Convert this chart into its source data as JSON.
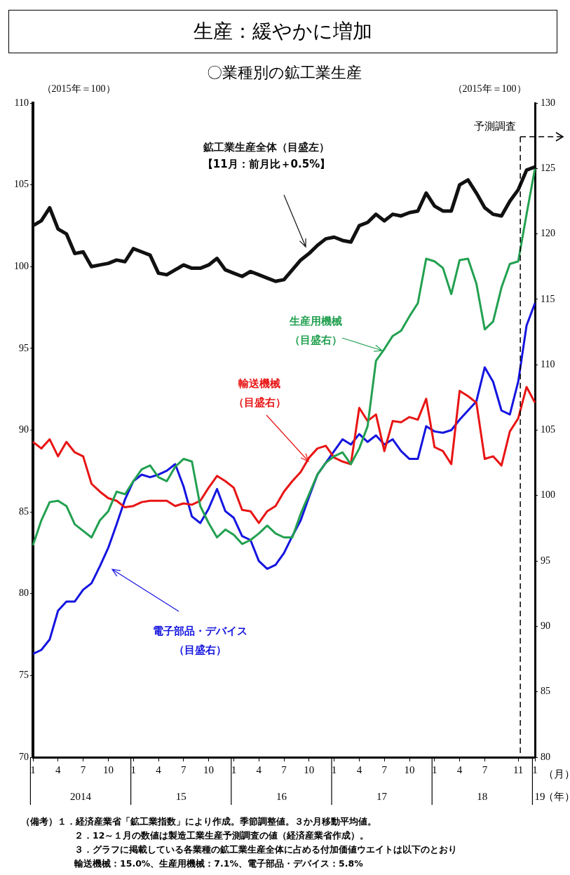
{
  "chart_data": {
    "type": "line",
    "title": "生産：緩やかに増加",
    "subtitle": "〇業種別の鉱工業生産",
    "ylabel": "（2015年＝100）",
    "y2label": "（2015年＝100）",
    "xlabel": "（月）",
    "x": [
      "2014-01",
      "2014-02",
      "2014-03",
      "2014-04",
      "2014-05",
      "2014-06",
      "2014-07",
      "2014-08",
      "2014-09",
      "2014-10",
      "2014-11",
      "2014-12",
      "2015-01",
      "2015-02",
      "2015-03",
      "2015-04",
      "2015-05",
      "2015-06",
      "2015-07",
      "2015-08",
      "2015-09",
      "2015-10",
      "2015-11",
      "2015-12",
      "2016-01",
      "2016-02",
      "2016-03",
      "2016-04",
      "2016-05",
      "2016-06",
      "2016-07",
      "2016-08",
      "2016-09",
      "2016-10",
      "2016-11",
      "2016-12",
      "2017-01",
      "2017-02",
      "2017-03",
      "2017-04",
      "2017-05",
      "2017-06",
      "2017-07",
      "2017-08",
      "2017-09",
      "2017-10",
      "2017-11",
      "2017-12",
      "2018-01",
      "2018-02",
      "2018-03",
      "2018-04",
      "2018-05",
      "2018-06",
      "2018-07",
      "2018-08",
      "2018-09",
      "2018-10",
      "2018-11",
      "2018-12",
      "2019-01"
    ],
    "series": [
      {
        "name": "鉱工業生産全体（目盛左）",
        "color": "#111111",
        "values": [
          102.5,
          102.8,
          103.6,
          102.3,
          102.0,
          100.8,
          100.9,
          100.0,
          100.1,
          100.2,
          100.4,
          100.3,
          101.1,
          100.9,
          100.7,
          99.6,
          99.5,
          99.8,
          100.1,
          99.9,
          99.9,
          100.1,
          100.5,
          99.8,
          99.6,
          99.4,
          99.7,
          99.5,
          99.3,
          99.1,
          99.2,
          99.8,
          100.4,
          100.8,
          101.3,
          101.7,
          101.8,
          101.6,
          101.5,
          102.5,
          102.7,
          103.2,
          102.8,
          103.2,
          103.1,
          103.3,
          103.4,
          104.5,
          103.7,
          103.4,
          103.4,
          105.0,
          105.3,
          104.5,
          103.6,
          103.2,
          103.1,
          104.0,
          104.7,
          105.9,
          106.1
        ]
      },
      {
        "name": "生産用機械（目盛右）",
        "color": "#22a050",
        "axis": "y2",
        "values": [
          96.2,
          98.1,
          99.5,
          99.6,
          99.2,
          97.8,
          97.3,
          96.8,
          98.1,
          98.8,
          100.3,
          100.1,
          101.1,
          102.0,
          102.3,
          101.4,
          101.1,
          102.2,
          102.8,
          102.6,
          99.2,
          97.9,
          96.8,
          97.4,
          97.0,
          96.3,
          96.6,
          97.1,
          97.7,
          97.1,
          96.8,
          96.8,
          98.6,
          100.1,
          101.6,
          102.5,
          103.0,
          103.3,
          102.4,
          103.6,
          105.3,
          110.3,
          111.2,
          112.2,
          112.6,
          113.7,
          114.7,
          118.1,
          117.9,
          117.4,
          115.4,
          118.0,
          118.1,
          116.2,
          112.7,
          113.3,
          115.9,
          117.7,
          117.9,
          121.5,
          125.0
        ]
      },
      {
        "name": "輸送機械（目盛右）",
        "color": "#e81414",
        "axis": "y2",
        "values": [
          104.1,
          103.6,
          104.3,
          103.0,
          104.1,
          103.3,
          103.0,
          100.9,
          100.3,
          99.8,
          99.6,
          99.1,
          99.2,
          99.5,
          99.6,
          99.6,
          99.6,
          99.2,
          99.4,
          99.3,
          99.6,
          100.6,
          101.5,
          101.1,
          100.6,
          98.9,
          98.8,
          97.9,
          98.8,
          99.2,
          100.3,
          101.1,
          101.8,
          102.9,
          103.6,
          103.8,
          102.9,
          102.6,
          102.4,
          106.7,
          105.7,
          106.2,
          103.4,
          105.7,
          105.6,
          106.0,
          105.8,
          107.4,
          103.7,
          103.4,
          102.4,
          108.0,
          107.6,
          107.1,
          102.8,
          103.0,
          102.3,
          104.9,
          105.9,
          108.3,
          107.1
        ]
      },
      {
        "name": "電子部品・デバイス（目盛右）",
        "color": "#1414e0",
        "axis": "y2",
        "values": [
          87.9,
          88.2,
          89.0,
          91.2,
          91.9,
          91.9,
          92.8,
          93.3,
          94.6,
          96.0,
          97.8,
          99.7,
          101.1,
          101.6,
          101.4,
          101.6,
          101.9,
          102.4,
          100.7,
          98.4,
          97.9,
          99.0,
          100.5,
          98.8,
          98.3,
          96.9,
          96.6,
          95.0,
          94.4,
          94.7,
          95.6,
          96.9,
          98.1,
          99.9,
          101.6,
          102.5,
          103.4,
          104.3,
          103.9,
          104.7,
          104.1,
          104.6,
          103.9,
          104.3,
          103.4,
          102.8,
          102.8,
          105.3,
          104.9,
          104.8,
          105.0,
          105.8,
          106.5,
          107.2,
          109.8,
          108.7,
          106.5,
          106.2,
          108.7,
          113.0,
          114.7
        ]
      }
    ],
    "xlim": [
      "2014-01",
      "2019-01"
    ],
    "xticks": [
      {
        "value": "2014-01",
        "label": "1"
      },
      {
        "value": "2014-04",
        "label": "4"
      },
      {
        "value": "2014-07",
        "label": "7"
      },
      {
        "value": "2014-10",
        "label": "10"
      },
      {
        "value": "2015-01",
        "label": "1"
      },
      {
        "value": "2015-04",
        "label": "4"
      },
      {
        "value": "2015-07",
        "label": "7"
      },
      {
        "value": "2015-10",
        "label": "10"
      },
      {
        "value": "2016-01",
        "label": "1"
      },
      {
        "value": "2016-04",
        "label": "4"
      },
      {
        "value": "2016-07",
        "label": "7"
      },
      {
        "value": "2016-10",
        "label": "10"
      },
      {
        "value": "2017-01",
        "label": "1"
      },
      {
        "value": "2017-04",
        "label": "4"
      },
      {
        "value": "2017-07",
        "label": "7"
      },
      {
        "value": "2017-10",
        "label": "10"
      },
      {
        "value": "2018-01",
        "label": "1"
      },
      {
        "value": "2018-04",
        "label": "4"
      },
      {
        "value": "2018-07",
        "label": "7"
      },
      {
        "value": "2018-11",
        "label": "11"
      },
      {
        "value": "2019-01",
        "label": "1"
      }
    ],
    "ylim": [
      70,
      110
    ],
    "yticks": [
      70,
      75,
      80,
      85,
      90,
      95,
      100,
      105,
      110
    ],
    "y2lim": [
      80,
      130
    ],
    "y2ticks": [
      80,
      85,
      90,
      95,
      100,
      105,
      110,
      115,
      120,
      125,
      130
    ],
    "ref_lines": [
      {
        "axis": "x",
        "value": "2018-11",
        "label": "予測調査",
        "line_style": "dashed",
        "color": "#000000"
      }
    ],
    "annotations": [
      "【11月：前月比＋0.5%】",
      "（年）",
      "2014",
      "15",
      "16",
      "17",
      "18",
      "19",
      "（備考）１．経済産業省「鉱工業指数」により作成。季節調整値。３か月移動平均値。",
      "２．12～１月の数値は製造工業生産予測調査の値（経済産業省作成）。",
      "３．グラフに掲載している各業種の鉱工業生産全体に占める付加価値ウエイトは以下のとおり",
      "輸送機械：15.0%、生産用機械：7.1%、電子部品・デバイス：5.8%"
    ],
    "legend": false,
    "grid": false,
    "marker": "none",
    "line_style": "solid"
  }
}
